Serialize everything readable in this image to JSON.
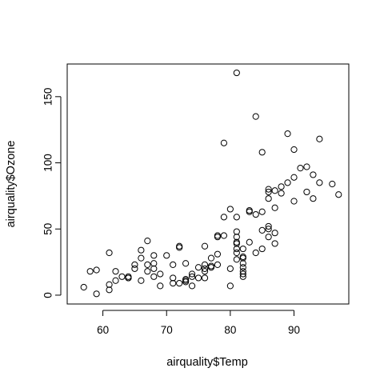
{
  "chart_data": {
    "type": "scatter",
    "title": "",
    "xlabel": "airquality$Temp",
    "ylabel": "airquality$Ozone",
    "xlim": [
      54.4,
      98.6
    ],
    "ylim": [
      -6.68,
      174.68
    ],
    "xticks": [
      60,
      70,
      80,
      90
    ],
    "yticks": [
      0,
      50,
      100,
      150
    ],
    "grid": false,
    "legend": "none",
    "marker": "open-circle",
    "points": [
      [
        57,
        6
      ],
      [
        58,
        18
      ],
      [
        59,
        19
      ],
      [
        59,
        1
      ],
      [
        61,
        32
      ],
      [
        61,
        8
      ],
      [
        61,
        4
      ],
      [
        62,
        11
      ],
      [
        62,
        18
      ],
      [
        63,
        14
      ],
      [
        64,
        13
      ],
      [
        64,
        14
      ],
      [
        64,
        13
      ],
      [
        65,
        20
      ],
      [
        65,
        23
      ],
      [
        66,
        11
      ],
      [
        66,
        28
      ],
      [
        66,
        34
      ],
      [
        67,
        18
      ],
      [
        67,
        23
      ],
      [
        67,
        41
      ],
      [
        68,
        14
      ],
      [
        68,
        20
      ],
      [
        68,
        24
      ],
      [
        68,
        30
      ],
      [
        69,
        16
      ],
      [
        69,
        7
      ],
      [
        70,
        30
      ],
      [
        71,
        9
      ],
      [
        71,
        13
      ],
      [
        71,
        23
      ],
      [
        72,
        9
      ],
      [
        72,
        36
      ],
      [
        72,
        37
      ],
      [
        73,
        12
      ],
      [
        73,
        11
      ],
      [
        73,
        10
      ],
      [
        73,
        24
      ],
      [
        74,
        7
      ],
      [
        74,
        16
      ],
      [
        74,
        14
      ],
      [
        75,
        13
      ],
      [
        75,
        21
      ],
      [
        76,
        13
      ],
      [
        76,
        18
      ],
      [
        76,
        20
      ],
      [
        76,
        23
      ],
      [
        76,
        37
      ],
      [
        77,
        21
      ],
      [
        77,
        22
      ],
      [
        77,
        28
      ],
      [
        78,
        23
      ],
      [
        78,
        31
      ],
      [
        78,
        44
      ],
      [
        78,
        45
      ],
      [
        79,
        45
      ],
      [
        79,
        115
      ],
      [
        79,
        59
      ],
      [
        80,
        7
      ],
      [
        80,
        20
      ],
      [
        80,
        65
      ],
      [
        81,
        168
      ],
      [
        81,
        27
      ],
      [
        81,
        32
      ],
      [
        81,
        35
      ],
      [
        81,
        40
      ],
      [
        81,
        44
      ],
      [
        81,
        48
      ],
      [
        81,
        59
      ],
      [
        81,
        39
      ],
      [
        82,
        14
      ],
      [
        82,
        16
      ],
      [
        82,
        18
      ],
      [
        82,
        21
      ],
      [
        82,
        24
      ],
      [
        82,
        28
      ],
      [
        82,
        29
      ],
      [
        82,
        35
      ],
      [
        83,
        40
      ],
      [
        83,
        64
      ],
      [
        83,
        63
      ],
      [
        84,
        32
      ],
      [
        84,
        61
      ],
      [
        84,
        135
      ],
      [
        85,
        35
      ],
      [
        85,
        49
      ],
      [
        85,
        63
      ],
      [
        85,
        108
      ],
      [
        86,
        44
      ],
      [
        86,
        50
      ],
      [
        86,
        52
      ],
      [
        86,
        73
      ],
      [
        86,
        78
      ],
      [
        86,
        80
      ],
      [
        87,
        39
      ],
      [
        87,
        47
      ],
      [
        87,
        66
      ],
      [
        87,
        79
      ],
      [
        88,
        77
      ],
      [
        88,
        82
      ],
      [
        89,
        85
      ],
      [
        89,
        122
      ],
      [
        90,
        71
      ],
      [
        90,
        89
      ],
      [
        90,
        110
      ],
      [
        91,
        96
      ],
      [
        92,
        78
      ],
      [
        92,
        97
      ],
      [
        93,
        73
      ],
      [
        93,
        91
      ],
      [
        94,
        85
      ],
      [
        94,
        118
      ],
      [
        96,
        84
      ],
      [
        97,
        76
      ]
    ]
  }
}
